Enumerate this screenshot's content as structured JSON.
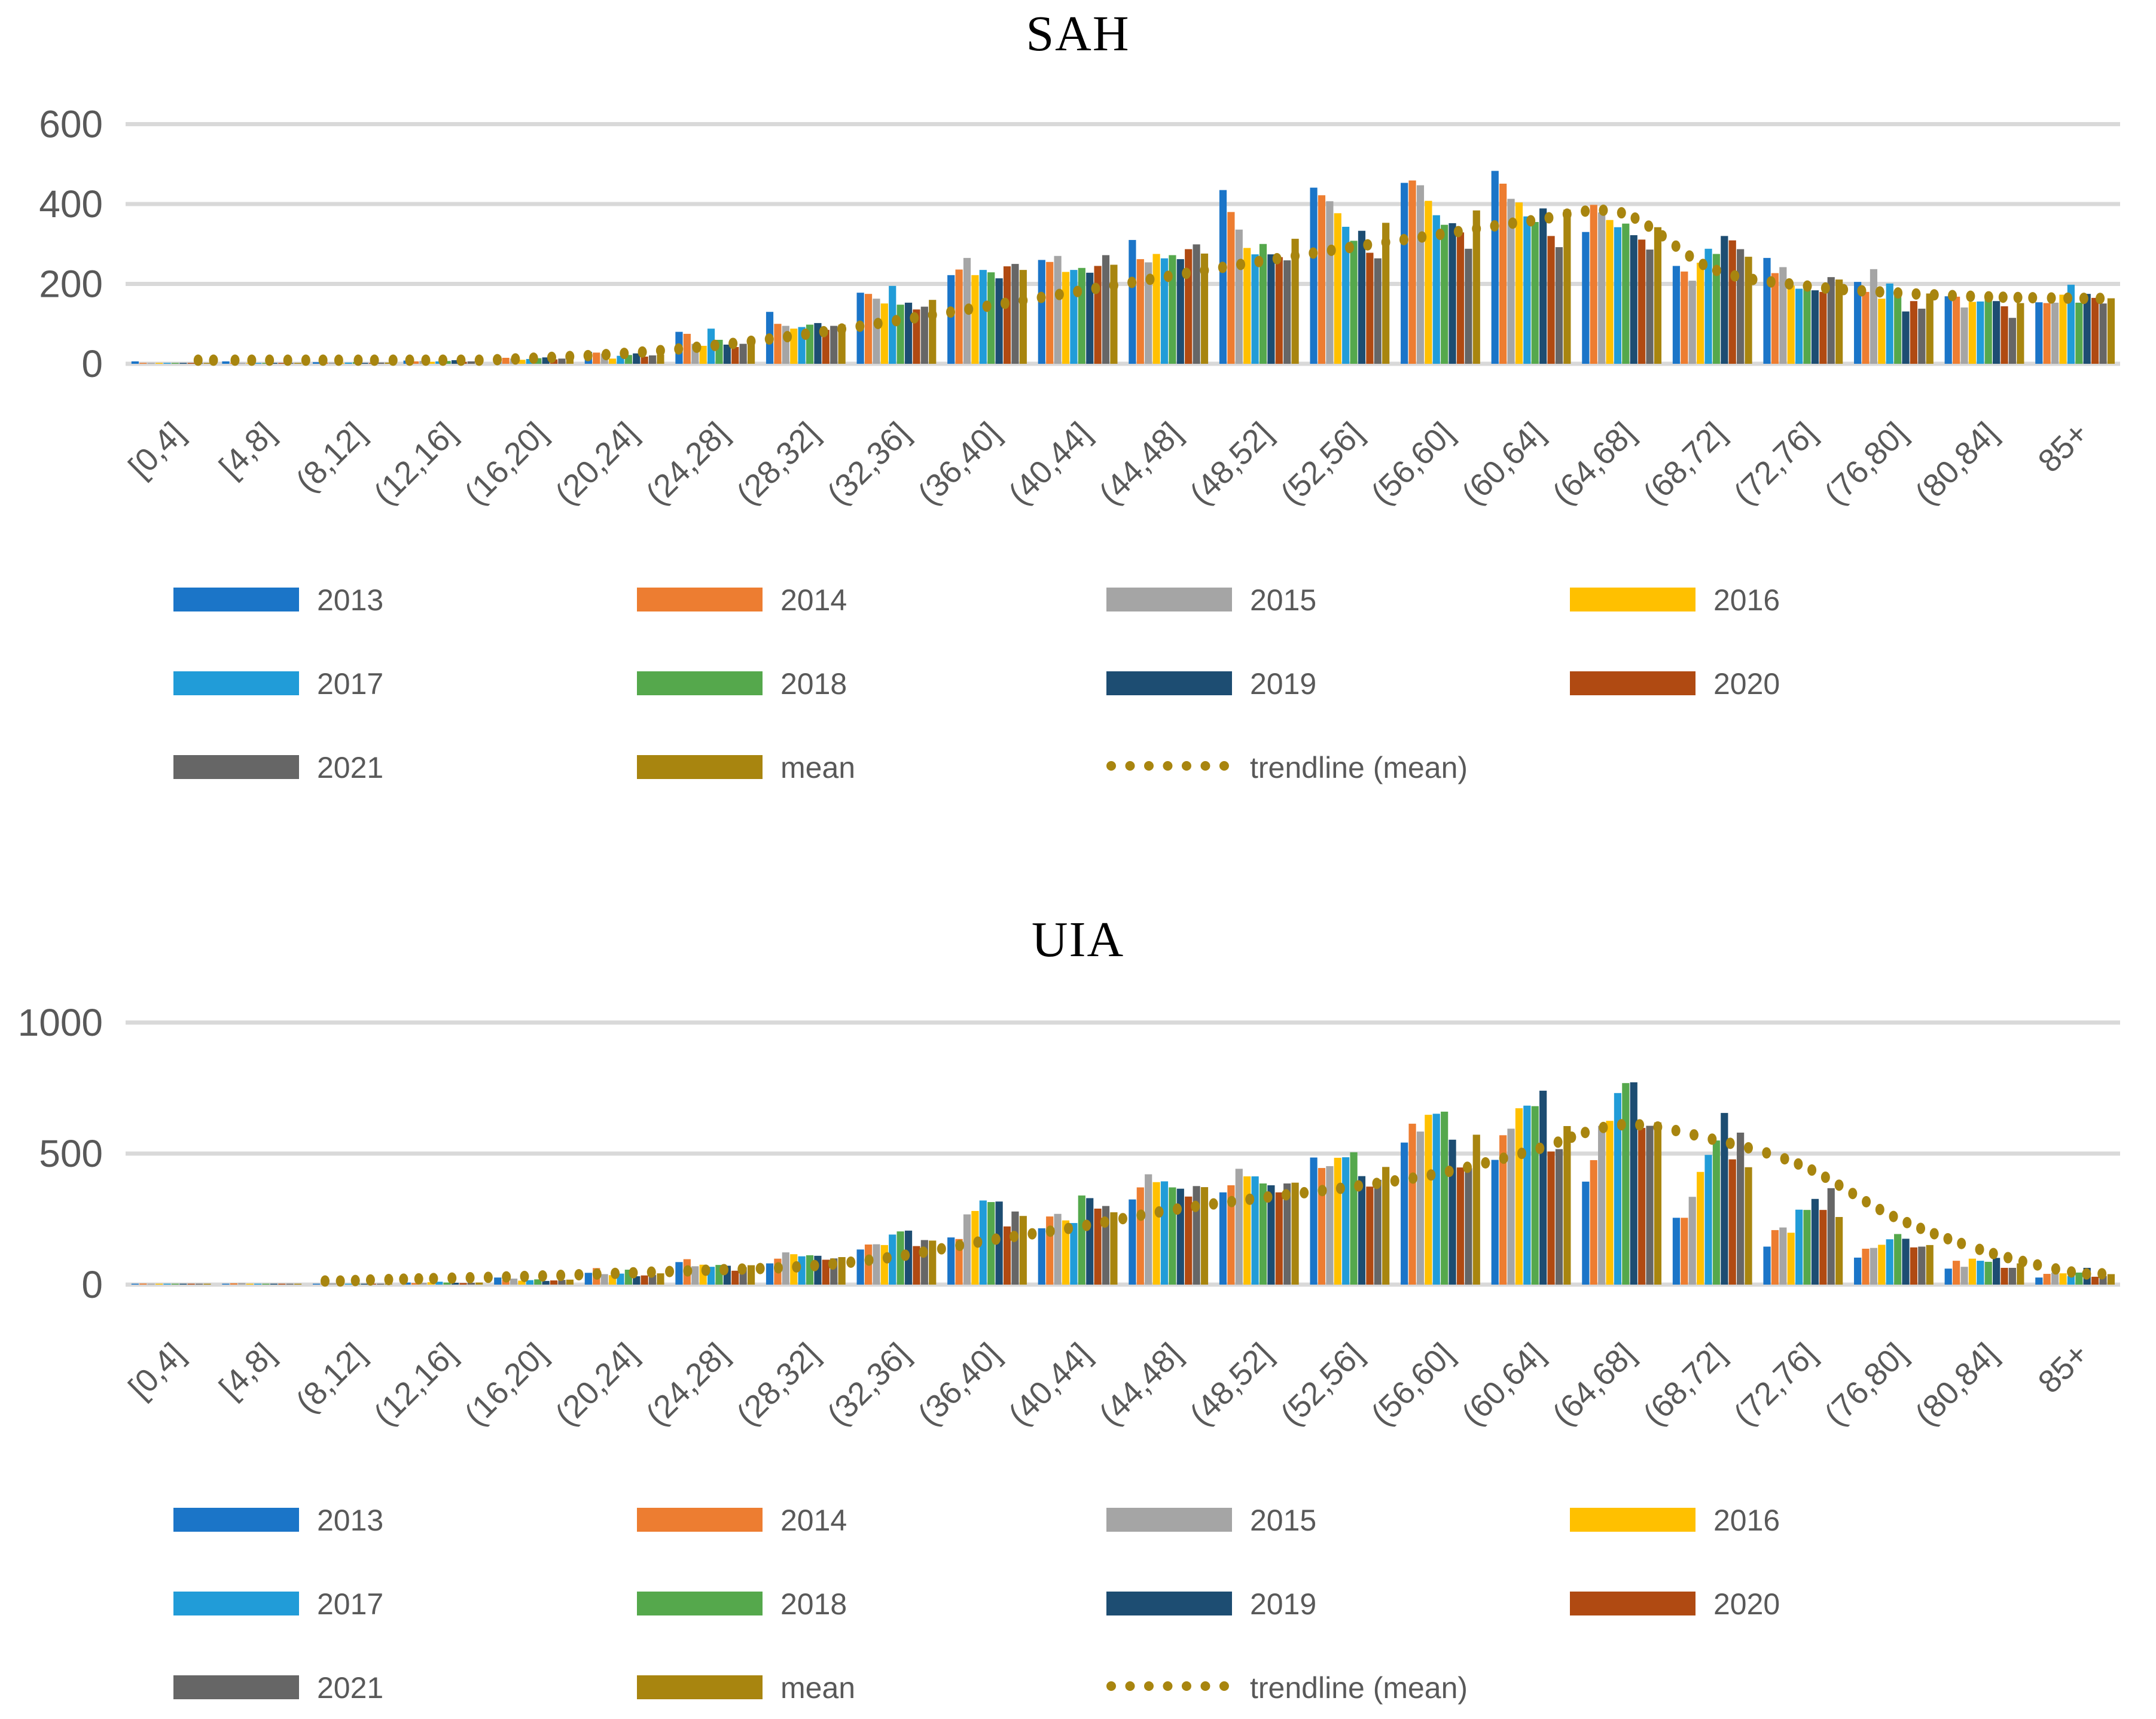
{
  "figure": {
    "background": "#FFFFFF",
    "grid_color": "#D9D9D9",
    "text_color": "#595959"
  },
  "chart_data": [
    {
      "type": "bar",
      "title": "SAH",
      "xlabel": "",
      "ylabel": "",
      "ylim": [
        0,
        600
      ],
      "y_ticks": [
        0,
        200,
        400,
        600
      ],
      "grid": true,
      "legend_position": "bottom",
      "categories": [
        "[0,4]",
        "[4,8]",
        "(8,12]",
        "(12,16]",
        "(16,20]",
        "(20,24]",
        "(24,28]",
        "(28,32]",
        "(32,36]",
        "(36,40]",
        "(40,44]",
        "(44,48]",
        "(48,52]",
        "(52,56]",
        "(56,60]",
        "(60,64]",
        "(64,68]",
        "(68,72]",
        "(72,76]",
        "(76,80]",
        "(80,84]",
        "85+"
      ],
      "series": [
        {
          "name": "2013",
          "color": "#1B75C8",
          "values": [
            6,
            6,
            4,
            8,
            18,
            30,
            80,
            130,
            178,
            222,
            260,
            310,
            435,
            441,
            453,
            483,
            330,
            245,
            265,
            205,
            169,
            154
          ]
        },
        {
          "name": "2014",
          "color": "#ED7D31",
          "values": [
            2,
            2,
            3,
            6,
            15,
            28,
            75,
            100,
            175,
            236,
            255,
            262,
            380,
            422,
            459,
            451,
            398,
            231,
            227,
            180,
            168,
            152
          ]
        },
        {
          "name": "2015",
          "color": "#A5A5A5",
          "values": [
            2,
            2,
            3,
            7,
            13,
            25,
            50,
            95,
            163,
            265,
            270,
            254,
            336,
            407,
            447,
            413,
            379,
            208,
            242,
            237,
            141,
            153
          ]
        },
        {
          "name": "2016",
          "color": "#FFC000",
          "values": [
            2,
            2,
            2,
            5,
            10,
            13,
            45,
            88,
            151,
            222,
            230,
            275,
            290,
            377,
            408,
            404,
            360,
            253,
            196,
            163,
            155,
            173
          ]
        },
        {
          "name": "2017",
          "color": "#219CD8",
          "values": [
            1,
            2,
            3,
            6,
            12,
            20,
            88,
            92,
            195,
            235,
            235,
            264,
            274,
            343,
            372,
            369,
            342,
            288,
            188,
            201,
            156,
            198
          ]
        },
        {
          "name": "2018",
          "color": "#55A84C",
          "values": [
            2,
            2,
            4,
            7,
            14,
            22,
            60,
            98,
            148,
            229,
            240,
            272,
            300,
            308,
            348,
            355,
            351,
            275,
            198,
            173,
            165,
            153
          ]
        },
        {
          "name": "2019",
          "color": "#1D4D72",
          "values": [
            1,
            1,
            2,
            9,
            16,
            26,
            48,
            102,
            153,
            214,
            228,
            262,
            274,
            333,
            352,
            389,
            322,
            320,
            184,
            131,
            157,
            175
          ]
        },
        {
          "name": "2020",
          "color": "#B04A12",
          "values": [
            1,
            1,
            2,
            5,
            11,
            18,
            42,
            85,
            136,
            244,
            245,
            287,
            267,
            278,
            329,
            320,
            311,
            309,
            180,
            157,
            144,
            165
          ]
        },
        {
          "name": "2021",
          "color": "#666666",
          "values": [
            2,
            2,
            3,
            6,
            13,
            21,
            50,
            95,
            143,
            250,
            272,
            299,
            259,
            264,
            288,
            292,
            286,
            287,
            217,
            138,
            115,
            151
          ]
        },
        {
          "name": "mean",
          "color": "#A8850F",
          "values": [
            2,
            2,
            3,
            7,
            14,
            23,
            60,
            98,
            160,
            235,
            248,
            276,
            313,
            353,
            384,
            386,
            342,
            268,
            211,
            176,
            152,
            164
          ]
        }
      ],
      "trendline": {
        "name": "trendline (mean)",
        "color": "#A8850F",
        "style": "dotted",
        "values": [
          null,
          null,
          2,
          6,
          14,
          26,
          46,
          74,
          108,
          144,
          181,
          219,
          256,
          291,
          324,
          358,
          378,
          238,
          196,
          178,
          168,
          164
        ]
      }
    },
    {
      "type": "bar",
      "title": "UIA",
      "xlabel": "",
      "ylabel": "",
      "ylim": [
        0,
        1000
      ],
      "y_ticks": [
        0,
        500,
        1000
      ],
      "grid": true,
      "legend_position": "bottom",
      "categories": [
        "[0,4]",
        "[4,8]",
        "(8,12]",
        "(12,16]",
        "(16,20]",
        "(20,24]",
        "(24,28]",
        "(28,32]",
        "(32,36]",
        "(36,40]",
        "(40,44]",
        "(44,48]",
        "(48,52]",
        "(52,56]",
        "(56,60]",
        "(60,64]",
        "(64,68]",
        "(68,72]",
        "(72,76]",
        "(76,80]",
        "(80,84]",
        "85+"
      ],
      "series": [
        {
          "name": "2013",
          "color": "#1B75C8",
          "values": [
            2,
            2,
            3,
            8,
            27,
            45,
            86,
            81,
            134,
            180,
            215,
            325,
            352,
            485,
            542,
            476,
            393,
            255,
            145,
            103,
            61,
            27
          ]
        },
        {
          "name": "2014",
          "color": "#ED7D31",
          "values": [
            4,
            5,
            4,
            6,
            18,
            63,
            97,
            99,
            153,
            174,
            260,
            371,
            379,
            445,
            614,
            570,
            475,
            255,
            208,
            137,
            91,
            41
          ]
        },
        {
          "name": "2015",
          "color": "#A5A5A5",
          "values": [
            2,
            6,
            5,
            7,
            23,
            40,
            70,
            123,
            154,
            268,
            270,
            421,
            442,
            452,
            584,
            595,
            606,
            335,
            218,
            140,
            68,
            46
          ]
        },
        {
          "name": "2016",
          "color": "#FFC000",
          "values": [
            1,
            2,
            3,
            9,
            15,
            36,
            76,
            116,
            151,
            281,
            245,
            391,
            413,
            484,
            648,
            673,
            625,
            430,
            198,
            152,
            99,
            43
          ]
        },
        {
          "name": "2017",
          "color": "#219CD8",
          "values": [
            1,
            2,
            2,
            11,
            17,
            42,
            68,
            108,
            191,
            321,
            235,
            394,
            413,
            486,
            652,
            683,
            731,
            495,
            286,
            173,
            91,
            33
          ]
        },
        {
          "name": "2018",
          "color": "#55A84C",
          "values": [
            2,
            3,
            4,
            8,
            20,
            57,
            75,
            112,
            203,
            315,
            340,
            371,
            386,
            505,
            660,
            681,
            769,
            550,
            285,
            193,
            87,
            46
          ]
        },
        {
          "name": "2019",
          "color": "#1D4D72",
          "values": [
            1,
            2,
            3,
            7,
            14,
            32,
            72,
            110,
            206,
            317,
            330,
            366,
            379,
            414,
            553,
            740,
            772,
            655,
            327,
            175,
            102,
            64
          ]
        },
        {
          "name": "2020",
          "color": "#B04A12",
          "values": [
            3,
            2,
            3,
            6,
            16,
            35,
            53,
            95,
            147,
            222,
            290,
            336,
            352,
            374,
            447,
            508,
            598,
            478,
            285,
            142,
            64,
            30
          ]
        },
        {
          "name": "2021",
          "color": "#666666",
          "values": [
            1,
            3,
            3,
            7,
            18,
            37,
            66,
            100,
            170,
            279,
            300,
            376,
            386,
            400,
            444,
            517,
            606,
            580,
            368,
            145,
            64,
            33
          ]
        },
        {
          "name": "mean",
          "color": "#A8850F",
          "values": [
            2,
            3,
            3,
            8,
            19,
            43,
            74,
            105,
            168,
            262,
            276,
            372,
            389,
            449,
            572,
            605,
            619,
            448,
            258,
            151,
            81,
            40
          ]
        }
      ],
      "trendline": {
        "name": "trendline (mean)",
        "color": "#A8850F",
        "style": "dotted",
        "values": [
          null,
          null,
          15,
          24,
          32,
          44,
          56,
          70,
          107,
          168,
          220,
          283,
          330,
          372,
          425,
          510,
          610,
          555,
          453,
          260,
          129,
          46
        ]
      }
    }
  ]
}
